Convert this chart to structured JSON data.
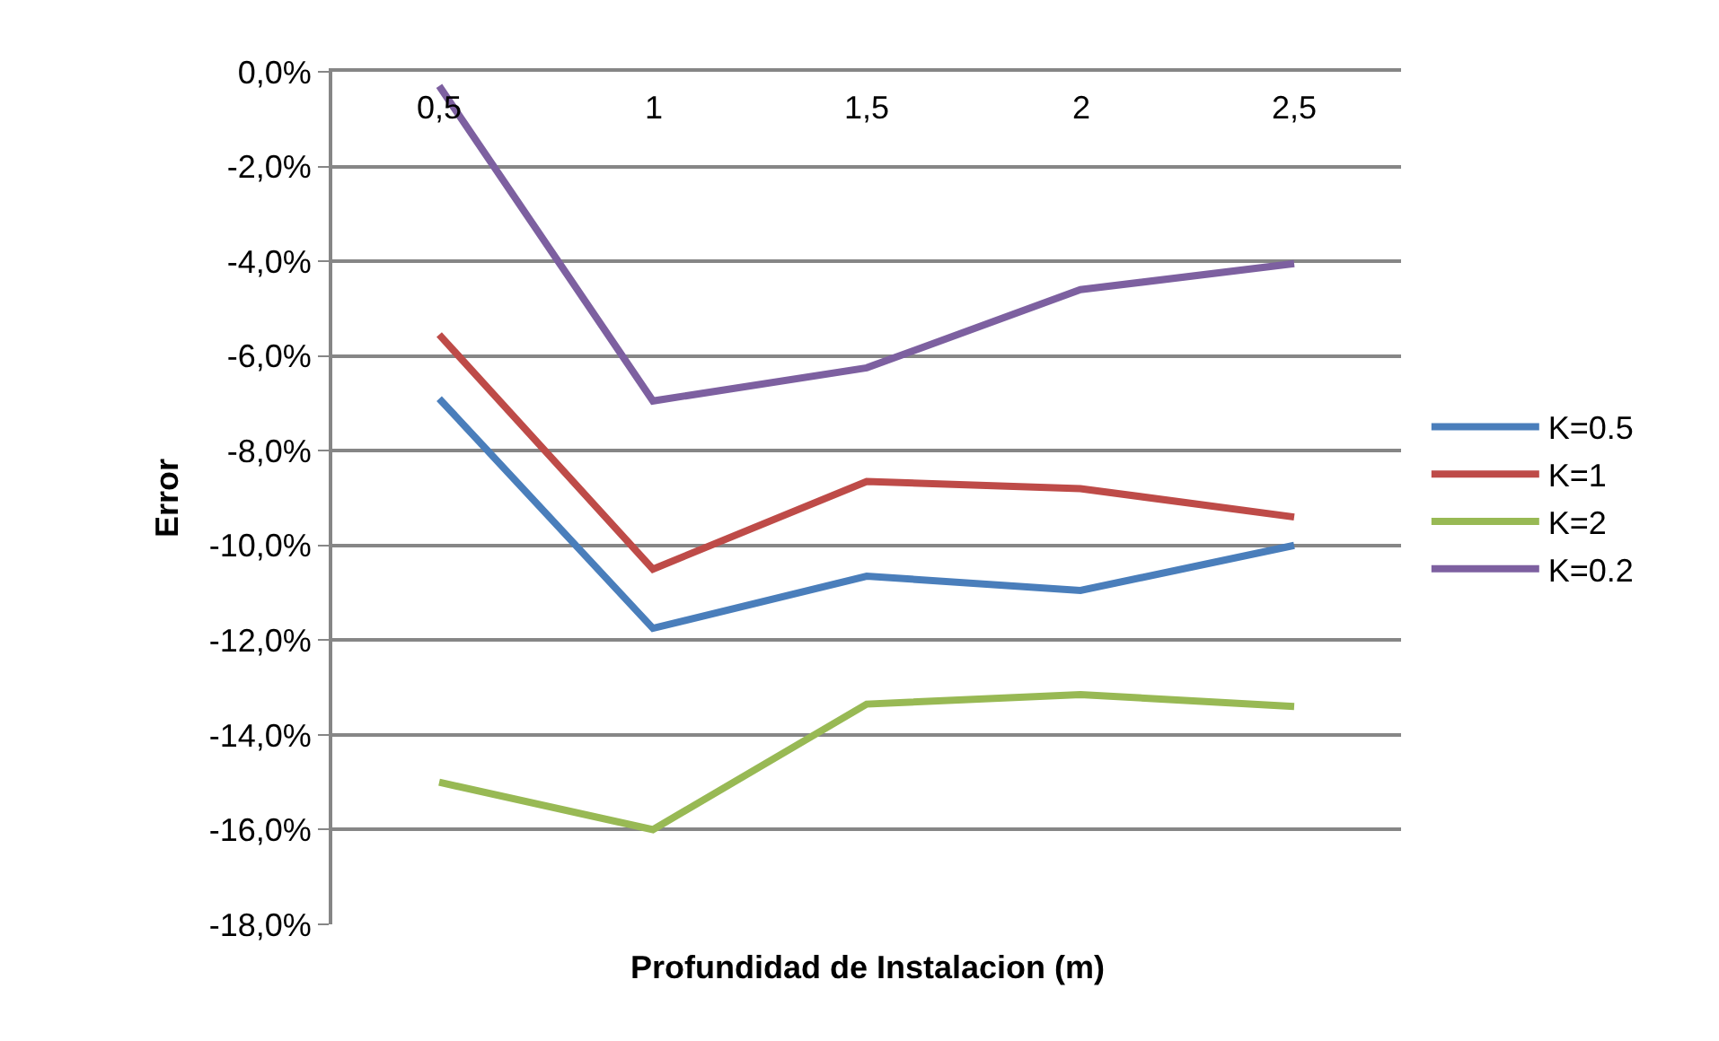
{
  "chart_data": {
    "type": "line",
    "xlabel": "Profundidad de Instalacion (m)",
    "ylabel": "Error",
    "categories": [
      "0,5",
      "1",
      "1,5",
      "2",
      "2,5"
    ],
    "series": [
      {
        "name": "K=0.5",
        "color": "#4a7ebb",
        "values": [
          -6.9,
          -11.75,
          -10.65,
          -10.95,
          -10.0
        ]
      },
      {
        "name": "K=1",
        "color": "#be4b48",
        "values": [
          -5.55,
          -10.5,
          -8.65,
          -8.8,
          -9.4
        ]
      },
      {
        "name": "K=2",
        "color": "#98b954",
        "values": [
          -15.0,
          -16.0,
          -13.35,
          -13.15,
          -13.4
        ]
      },
      {
        "name": "K=0.2",
        "color": "#7d60a0",
        "values": [
          -0.3,
          -6.95,
          -6.25,
          -4.6,
          -4.05
        ]
      }
    ],
    "ylim": [
      -18,
      0
    ],
    "yticks": [
      {
        "value": 0,
        "label": "0,0%"
      },
      {
        "value": -2,
        "label": "-2,0%"
      },
      {
        "value": -4,
        "label": "-4,0%"
      },
      {
        "value": -6,
        "label": "-6,0%"
      },
      {
        "value": -8,
        "label": "-8,0%"
      },
      {
        "value": -10,
        "label": "-10,0%"
      },
      {
        "value": -12,
        "label": "-12,0%"
      },
      {
        "value": -14,
        "label": "-14,0%"
      },
      {
        "value": -16,
        "label": "-16,0%"
      },
      {
        "value": -18,
        "label": "-18,0%"
      }
    ],
    "grid": "y",
    "legend": "right",
    "marker": "none",
    "line_style": "solid"
  }
}
